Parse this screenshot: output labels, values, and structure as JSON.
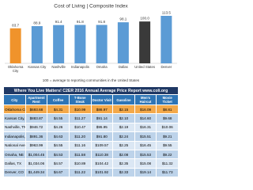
{
  "chart_data": {
    "type": "bar",
    "title": "Cost of Living | Composite Index",
    "categories": [
      "Oklahoma City",
      "Kansas City",
      "Nashville",
      "Indianapolis",
      "Omaha",
      "Dallas",
      "United States",
      "Denver"
    ],
    "values": [
      83.7,
      88.9,
      91.4,
      91.8,
      91.8,
      98.1,
      100.0,
      113.5
    ],
    "value_labels": [
      "83.7",
      "88.9",
      "91.4",
      "91.8",
      "91.8",
      "98.1",
      "100.0",
      "113.5"
    ],
    "colors": [
      "#f0932b",
      "#5b9bd5",
      "#5b9bd5",
      "#5b9bd5",
      "#5b9bd5",
      "#5b9bd5",
      "#3a3a3a",
      "#5b9bd5"
    ],
    "caption": "100 = average to reporting communities in the United States"
  },
  "table": {
    "title": "Where You Live Matters! C2ER 2016 Annual Average Price Report www.coli.org",
    "columns": [
      "City",
      "Apartment Rent",
      "Coffee",
      "T-Bone Steak",
      "Doctor Visit",
      "Gasoline",
      "Men's Haircut",
      "Movie Ticket"
    ],
    "rows": [
      [
        "Oklahoma City, OK",
        "$693.68",
        "$4.31",
        "$10.99",
        "$86.97",
        "$2.15",
        "$16.09",
        "$8.81"
      ],
      [
        "Kansas City, MO",
        "$883.87",
        "$4.55",
        "$11.27",
        "$91.14",
        "$2.10",
        "$14.60",
        "$9.68"
      ],
      [
        "Nashville, TN",
        "$946.72",
        "$4.26",
        "$10.47",
        "$95.95",
        "$2.19",
        "$16.31",
        "$10.06"
      ],
      [
        "Indianapolis, IN",
        "$891.36",
        "$4.63",
        "$11.20",
        "$91.80",
        "$2.24",
        "$15.51",
        "$9.21"
      ],
      [
        "National Average",
        "$963.99",
        "$4.55",
        "$11.16",
        "$109.57",
        "$2.25",
        "$16.45",
        "$9.55"
      ],
      [
        "Omaha, NE",
        "$1,004.45",
        "$4.53",
        "$11.58",
        "$110.38",
        "$2.08",
        "$15.53",
        "$9.22"
      ],
      [
        "Dallas, TX",
        "$1,034.06",
        "$4.57",
        "$10.89",
        "$104.42",
        "$2.35",
        "$15.08",
        "$11.32"
      ],
      [
        "Denver, CO",
        "$1,449.34",
        "$4.67",
        "$11.22",
        "$101.92",
        "$2.33",
        "$19.14",
        "$11.73"
      ]
    ],
    "highlight_row": 0
  }
}
